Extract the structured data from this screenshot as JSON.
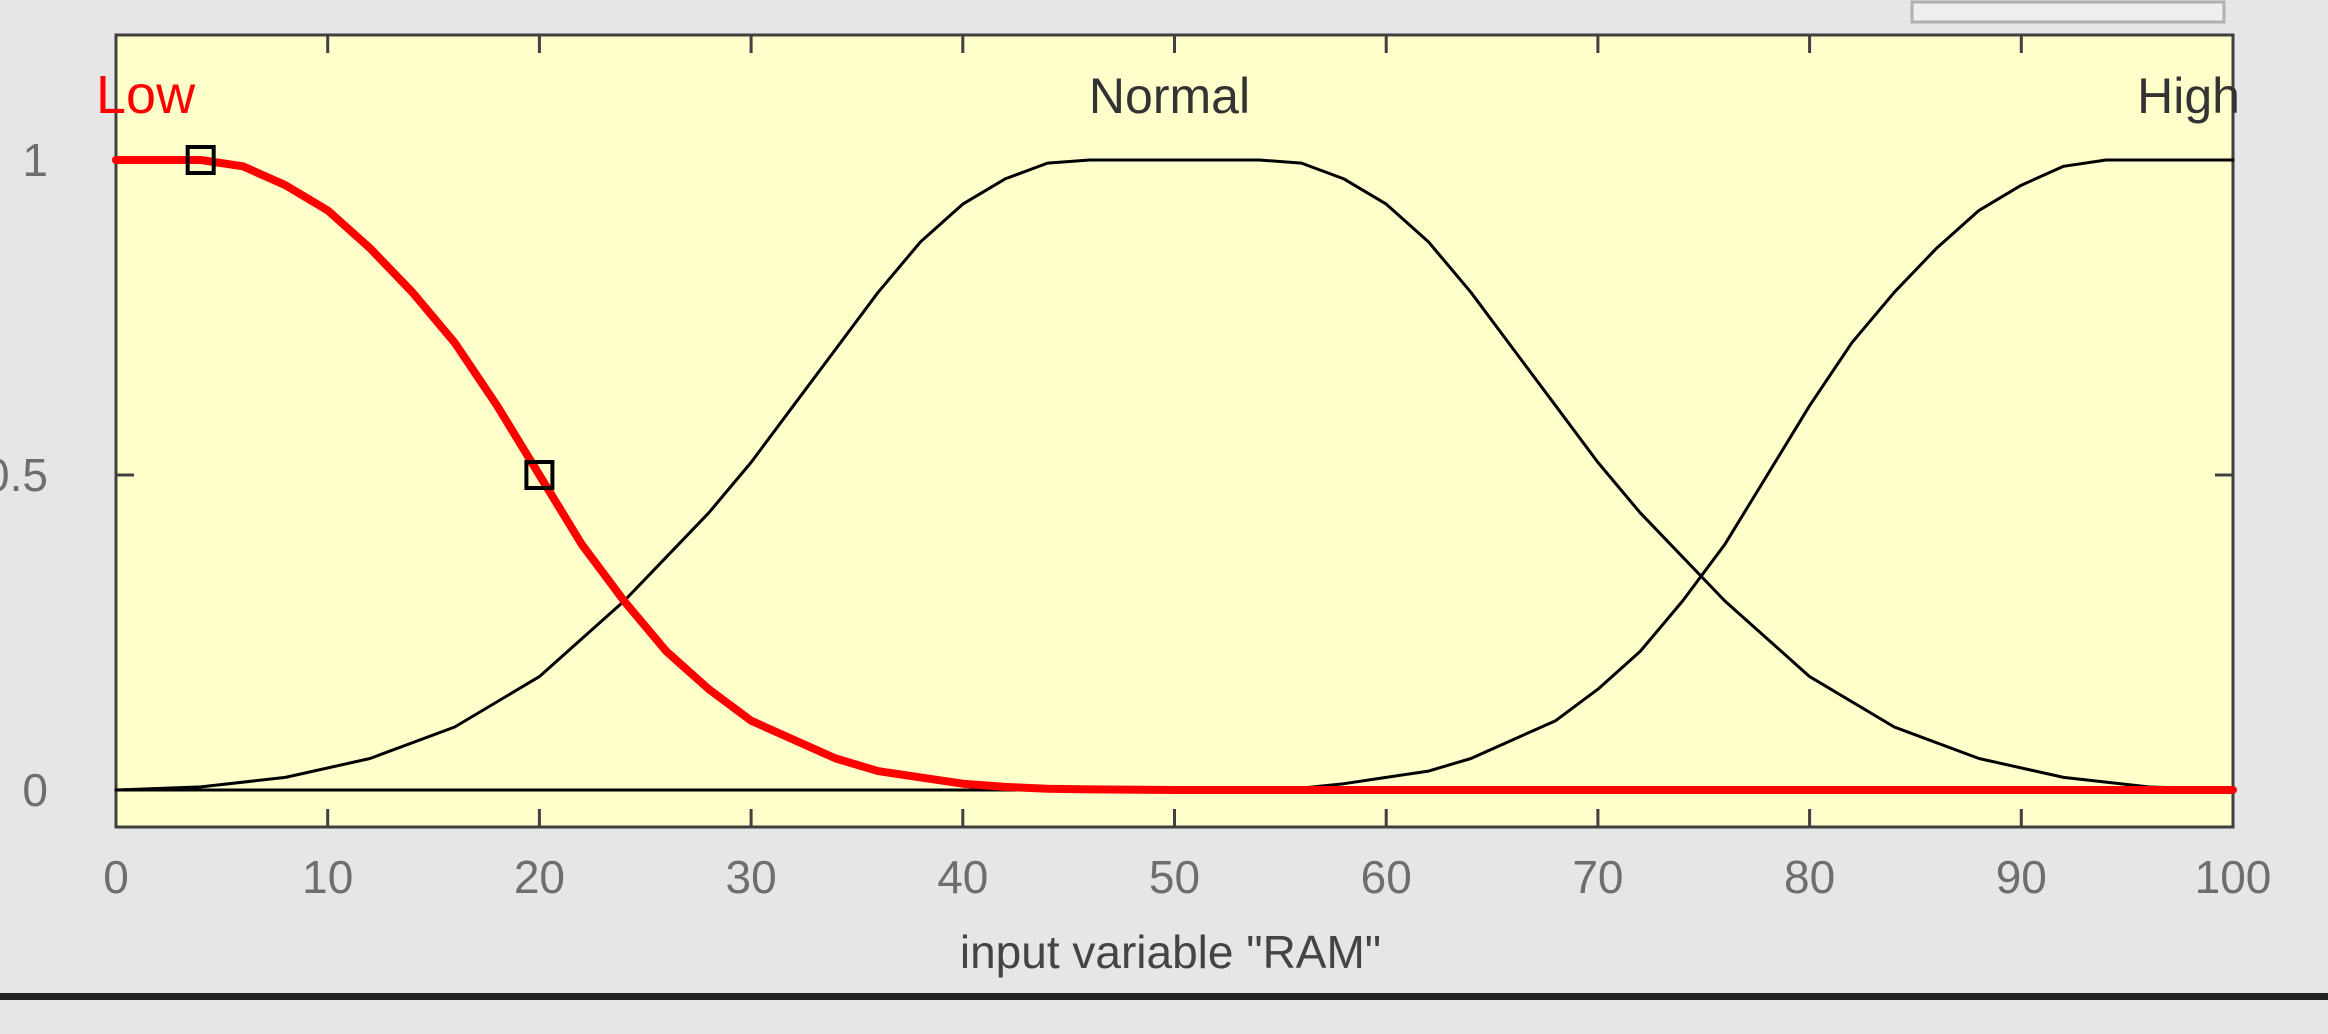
{
  "chart_data": {
    "type": "line",
    "xlabel": "input variable \"RAM\"",
    "xlim": [
      0,
      100
    ],
    "ylim": [
      0,
      1
    ],
    "xticks": [
      0,
      10,
      20,
      30,
      40,
      50,
      60,
      70,
      80,
      90,
      100
    ],
    "yticks": [
      0,
      0.5,
      1
    ],
    "ytick_labels": [
      "0",
      "0.5",
      "1"
    ],
    "grid": false,
    "background_color": "#ffffcc",
    "selected_color": "#ff0000",
    "default_color": "#000000",
    "series": [
      {
        "name": "Low",
        "selected": true,
        "label_position": "top-left",
        "handles": [
          [
            4,
            1
          ],
          [
            20,
            0.5
          ]
        ],
        "x": [
          0,
          4,
          6,
          8,
          10,
          12,
          14,
          16,
          18,
          20,
          22,
          24,
          26,
          28,
          30,
          32,
          34,
          36,
          38,
          40,
          42,
          44,
          46,
          50,
          100
        ],
        "y": [
          1,
          1,
          0.99,
          0.96,
          0.92,
          0.86,
          0.79,
          0.71,
          0.61,
          0.5,
          0.39,
          0.3,
          0.22,
          0.16,
          0.11,
          0.08,
          0.05,
          0.03,
          0.02,
          0.01,
          0.005,
          0.002,
          0.001,
          0,
          0
        ]
      },
      {
        "name": "Normal",
        "selected": false,
        "label_position": "top-center",
        "x": [
          0,
          4,
          8,
          12,
          16,
          20,
          24,
          28,
          30,
          32,
          34,
          36,
          38,
          40,
          42,
          44,
          46,
          54,
          56,
          58,
          60,
          62,
          64,
          66,
          68,
          70,
          72,
          76,
          80,
          84,
          88,
          92,
          96,
          100
        ],
        "y": [
          0,
          0.005,
          0.02,
          0.05,
          0.1,
          0.18,
          0.3,
          0.44,
          0.52,
          0.61,
          0.7,
          0.79,
          0.87,
          0.93,
          0.97,
          0.995,
          1,
          1,
          0.995,
          0.97,
          0.93,
          0.87,
          0.79,
          0.7,
          0.61,
          0.52,
          0.44,
          0.3,
          0.18,
          0.1,
          0.05,
          0.02,
          0.005,
          0
        ]
      },
      {
        "name": "High",
        "selected": false,
        "label_position": "top-right",
        "x": [
          0,
          50,
          54,
          56,
          58,
          60,
          62,
          64,
          66,
          68,
          70,
          72,
          74,
          76,
          78,
          80,
          82,
          84,
          86,
          88,
          90,
          92,
          94,
          96,
          100
        ],
        "y": [
          0,
          0,
          0.001,
          0.003,
          0.01,
          0.02,
          0.03,
          0.05,
          0.08,
          0.11,
          0.16,
          0.22,
          0.3,
          0.39,
          0.5,
          0.61,
          0.71,
          0.79,
          0.86,
          0.92,
          0.96,
          0.99,
          1,
          1,
          1
        ]
      }
    ]
  }
}
